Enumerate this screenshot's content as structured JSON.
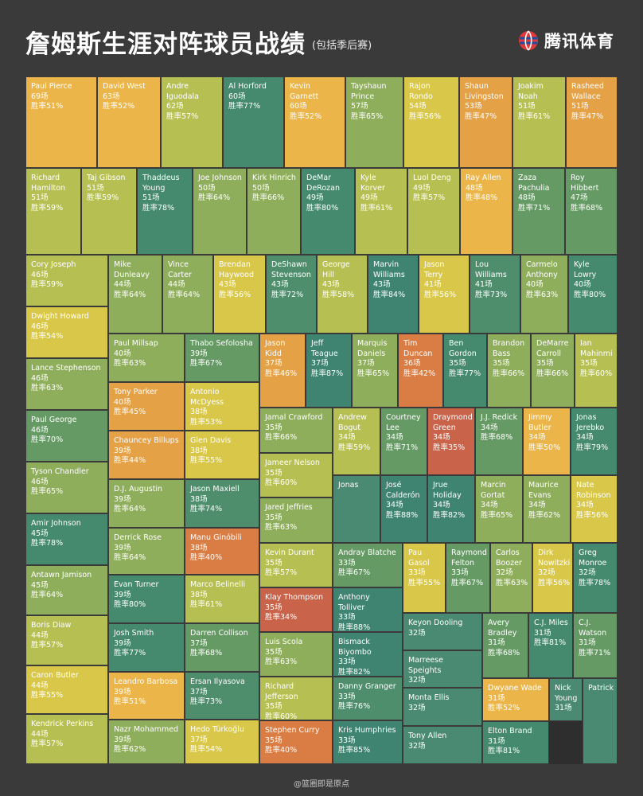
{
  "header": {
    "title": "詹姆斯生涯对阵球员战绩",
    "subtitle": "(包括季后赛)",
    "logo_text": "腾讯体育"
  },
  "footer": {
    "credit": "@篮圈即是原点"
  },
  "colors": {
    "p35": "#c9634a",
    "p40": "#d97d45",
    "p45": "#e5a146",
    "p50": "#ebb54a",
    "p55": "#d9c749",
    "p60": "#b6c052",
    "p65": "#8fae5c",
    "p70": "#669a64",
    "p75": "#4f8e6c",
    "p80": "#45896f",
    "p85": "#3f8470",
    "empty": "#4b8a72"
  },
  "chart_data": {
    "type": "treemap",
    "title": "詹姆斯生涯对阵球员战绩",
    "subtitle": "(包括季后赛)",
    "value_label": "场",
    "rate_label": "胜率",
    "items": [
      {
        "name": "Paul Pierce",
        "games": 69,
        "win_rate": 51
      },
      {
        "name": "David West",
        "games": 63,
        "win_rate": 52
      },
      {
        "name": "Andre Iguodala",
        "games": 62,
        "win_rate": 57
      },
      {
        "name": "Al Horford",
        "games": 60,
        "win_rate": 77
      },
      {
        "name": "Kevin Garnett",
        "games": 60,
        "win_rate": 52
      },
      {
        "name": "Tayshaun Prince",
        "games": 57,
        "win_rate": 65
      },
      {
        "name": "Rajon Rondo",
        "games": 54,
        "win_rate": 56
      },
      {
        "name": "Shaun Livingston",
        "games": 53,
        "win_rate": 47
      },
      {
        "name": "Joakim Noah",
        "games": 51,
        "win_rate": 61
      },
      {
        "name": "Rasheed Wallace",
        "games": 51,
        "win_rate": 47
      },
      {
        "name": "Richard Hamilton",
        "games": 51,
        "win_rate": 59
      },
      {
        "name": "Taj Gibson",
        "games": 51,
        "win_rate": 59
      },
      {
        "name": "Thaddeus Young",
        "games": 51,
        "win_rate": 78
      },
      {
        "name": "Joe Johnson",
        "games": 50,
        "win_rate": 64
      },
      {
        "name": "Kirk Hinrich",
        "games": 50,
        "win_rate": 66
      },
      {
        "name": "DeMar DeRozan",
        "games": 49,
        "win_rate": 80
      },
      {
        "name": "Kyle Korver",
        "games": 49,
        "win_rate": 61
      },
      {
        "name": "Luol Deng",
        "games": 49,
        "win_rate": 57
      },
      {
        "name": "Ray Allen",
        "games": 48,
        "win_rate": 48
      },
      {
        "name": "Zaza Pachulia",
        "games": 48,
        "win_rate": 71
      },
      {
        "name": "Roy Hibbert",
        "games": 47,
        "win_rate": 68
      },
      {
        "name": "Cory Joseph",
        "games": 46,
        "win_rate": 59
      },
      {
        "name": "Mike Dunleavy",
        "games": 44,
        "win_rate": 64
      },
      {
        "name": "Vince Carter",
        "games": 44,
        "win_rate": 64
      },
      {
        "name": "Brendan Haywood",
        "games": 43,
        "win_rate": 56
      },
      {
        "name": "DeShawn Stevenson",
        "games": 43,
        "win_rate": 72
      },
      {
        "name": "George Hill",
        "games": 43,
        "win_rate": 58
      },
      {
        "name": "Marvin Williams",
        "games": 43,
        "win_rate": 84
      },
      {
        "name": "Jason Terry",
        "games": 41,
        "win_rate": 56
      },
      {
        "name": "Lou Williams",
        "games": 41,
        "win_rate": 73
      },
      {
        "name": "Carmelo Anthony",
        "games": 40,
        "win_rate": 63
      },
      {
        "name": "Kyle Lowry",
        "games": 40,
        "win_rate": 80
      },
      {
        "name": "Dwight Howard",
        "games": 46,
        "win_rate": 54
      },
      {
        "name": "Paul Millsap",
        "games": 40,
        "win_rate": 63
      },
      {
        "name": "Thabo Sefolosha",
        "games": 39,
        "win_rate": 67
      },
      {
        "name": "Jason Kidd",
        "games": 37,
        "win_rate": 46
      },
      {
        "name": "Jeff Teague",
        "games": 37,
        "win_rate": 87
      },
      {
        "name": "Marquis Daniels",
        "games": 37,
        "win_rate": 65
      },
      {
        "name": "Tim Duncan",
        "games": 36,
        "win_rate": 42
      },
      {
        "name": "Ben Gordon",
        "games": 35,
        "win_rate": 77
      },
      {
        "name": "Brandon Bass",
        "games": 35,
        "win_rate": 66
      },
      {
        "name": "DeMarre Carroll",
        "games": 35,
        "win_rate": 66
      },
      {
        "name": "Ian Mahinmi",
        "games": 35,
        "win_rate": 60
      },
      {
        "name": "Lance Stephenson",
        "games": 46,
        "win_rate": 63
      },
      {
        "name": "Tony Parker",
        "games": 40,
        "win_rate": 45
      },
      {
        "name": "Antonio McDyess",
        "games": 38,
        "win_rate": 53
      },
      {
        "name": "Paul George",
        "games": 46,
        "win_rate": 70
      },
      {
        "name": "Chauncey Billups",
        "games": 39,
        "win_rate": 44
      },
      {
        "name": "Glen Davis",
        "games": 38,
        "win_rate": 55
      },
      {
        "name": "Jamal Crawford",
        "games": 35,
        "win_rate": 66
      },
      {
        "name": "Andrew Bogut",
        "games": 34,
        "win_rate": 59
      },
      {
        "name": "Courtney Lee",
        "games": 34,
        "win_rate": 71
      },
      {
        "name": "Draymond Green",
        "games": 34,
        "win_rate": 35
      },
      {
        "name": "J.J. Redick",
        "games": 34,
        "win_rate": 68
      },
      {
        "name": "Jimmy Butler",
        "games": 34,
        "win_rate": 50
      },
      {
        "name": "Jonas Jerebko",
        "games": 34,
        "win_rate": 79
      },
      {
        "name": "Jameer Nelson",
        "games": 35,
        "win_rate": 60
      },
      {
        "name": "Jonas"
      },
      {
        "name": "José Calderón",
        "games": 34,
        "win_rate": 88
      },
      {
        "name": "Jrue Holiday",
        "games": 34,
        "win_rate": 82
      },
      {
        "name": "Marcin Gortat",
        "games": 34,
        "win_rate": 65
      },
      {
        "name": "Maurice Evans",
        "games": 34,
        "win_rate": 62
      },
      {
        "name": "Nate Robinson",
        "games": 34,
        "win_rate": 56
      },
      {
        "name": "Tyson Chandler",
        "games": 46,
        "win_rate": 65
      },
      {
        "name": "D.J. Augustin",
        "games": 39,
        "win_rate": 64
      },
      {
        "name": "Jason Maxiell",
        "games": 38,
        "win_rate": 74
      },
      {
        "name": "Jared Jeffries",
        "games": 35,
        "win_rate": 63
      },
      {
        "name": "Amir Johnson",
        "games": 45,
        "win_rate": 78
      },
      {
        "name": "Derrick Rose",
        "games": 39,
        "win_rate": 64
      },
      {
        "name": "Manu Ginóbili",
        "games": 38,
        "win_rate": 40
      },
      {
        "name": "Kevin Durant",
        "games": 35,
        "win_rate": 57
      },
      {
        "name": "Andray Blatche",
        "games": 33,
        "win_rate": 67
      },
      {
        "name": "Pau Gasol",
        "games": 33,
        "win_rate": 55
      },
      {
        "name": "Raymond Felton",
        "games": 33,
        "win_rate": 67
      },
      {
        "name": "Carlos Boozer",
        "games": 32,
        "win_rate": 63
      },
      {
        "name": "Dirk Nowitzki",
        "games": 32,
        "win_rate": 56
      },
      {
        "name": "Greg Monroe",
        "games": 32,
        "win_rate": 78
      },
      {
        "name": "Antawn Jamison",
        "games": 45,
        "win_rate": 64
      },
      {
        "name": "Evan Turner",
        "games": 39,
        "win_rate": 80
      },
      {
        "name": "Marco Belinelli",
        "games": 38,
        "win_rate": 61
      },
      {
        "name": "Klay Thompson",
        "games": 35,
        "win_rate": 34
      },
      {
        "name": "Anthony Tolliver",
        "games": 33,
        "win_rate": 88
      },
      {
        "name": "Keyon Dooling",
        "games": 32
      },
      {
        "name": "Avery Bradley",
        "games": 31,
        "win_rate": 68
      },
      {
        "name": "C.J. Miles",
        "games": 31,
        "win_rate": 81
      },
      {
        "name": "C.J. Watson",
        "games": 31,
        "win_rate": 71
      },
      {
        "name": "Boris Diaw",
        "games": 44,
        "win_rate": 57
      },
      {
        "name": "Josh Smith",
        "games": 39,
        "win_rate": 77
      },
      {
        "name": "Darren Collison",
        "games": 37,
        "win_rate": 68
      },
      {
        "name": "Luis Scola",
        "games": 35,
        "win_rate": 63
      },
      {
        "name": "Bismack Biyombo",
        "games": 33,
        "win_rate": 82
      },
      {
        "name": "Marreese Speights",
        "games": 32
      },
      {
        "name": "Caron Butler",
        "games": 44,
        "win_rate": 55
      },
      {
        "name": "Leandro Barbosa",
        "games": 39,
        "win_rate": 51
      },
      {
        "name": "Ersan Ilyasova",
        "games": 37,
        "win_rate": 73
      },
      {
        "name": "Richard Jefferson",
        "games": 35,
        "win_rate": 60
      },
      {
        "name": "Danny Granger",
        "games": 33,
        "win_rate": 76
      },
      {
        "name": "Monta Ellis",
        "games": 32
      },
      {
        "name": "Dwyane Wade",
        "games": 31,
        "win_rate": 52
      },
      {
        "name": "Nick Young",
        "games": 31
      },
      {
        "name": "Patrick"
      },
      {
        "name": "Kendrick Perkins",
        "games": 44,
        "win_rate": 57
      },
      {
        "name": "Nazr Mohammed",
        "games": 39,
        "win_rate": 62
      },
      {
        "name": "Hedo Türkoğlu",
        "games": 37,
        "win_rate": 54
      },
      {
        "name": "Stephen Curry",
        "games": 35,
        "win_rate": 40
      },
      {
        "name": "Kris Humphries",
        "games": 33,
        "win_rate": 85
      },
      {
        "name": "Tony Allen",
        "games": 32
      },
      {
        "name": "Elton Brand",
        "games": 31,
        "win_rate": 81
      }
    ]
  }
}
